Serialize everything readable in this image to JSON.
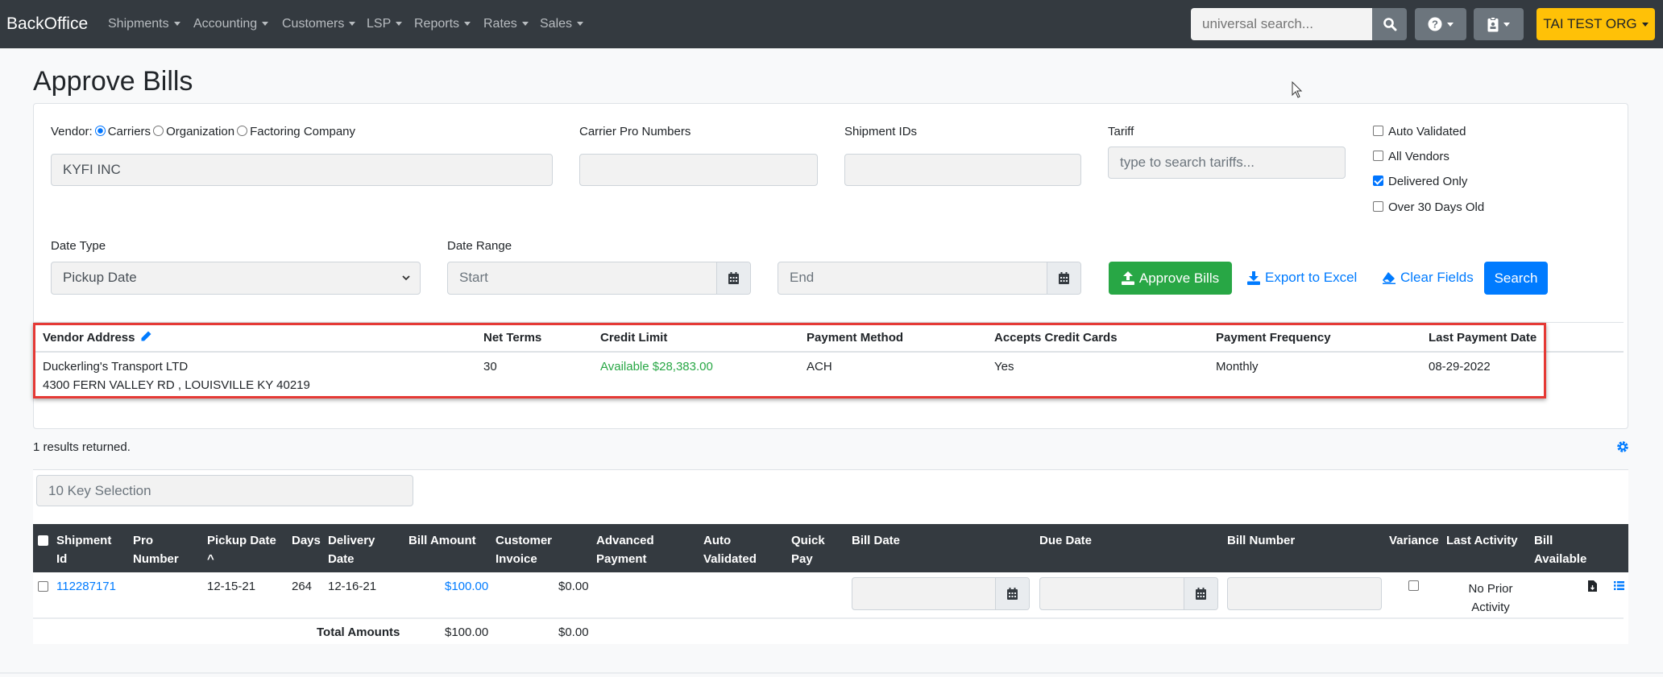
{
  "navbar": {
    "brand": "BackOffice",
    "menus": [
      "Shipments",
      "Accounting",
      "Customers",
      "LSP",
      "Reports",
      "Rates",
      "Sales"
    ],
    "search_placeholder": "universal search...",
    "org_label": "TAI TEST ORG",
    "icons": [
      "search-icon",
      "question-circle-icon",
      "id-badge-icon"
    ]
  },
  "page": {
    "title": "Approve Bills"
  },
  "filters": {
    "vendor_label": "Vendor:",
    "vendor_options": [
      {
        "label": "Carriers",
        "selected": true
      },
      {
        "label": "Organization",
        "selected": false
      },
      {
        "label": "Factoring Company",
        "selected": false
      }
    ],
    "vendor_value": "KYFI INC",
    "carrier_pro_label": "Carrier Pro Numbers",
    "carrier_pro_value": "",
    "shipment_ids_label": "Shipment IDs",
    "shipment_ids_value": "",
    "tariff_label": "Tariff",
    "tariff_placeholder": "type to search tariffs...",
    "checkboxes": [
      {
        "label": "Auto Validated",
        "checked": false
      },
      {
        "label": "All Vendors",
        "checked": false
      },
      {
        "label": "Delivered Only",
        "checked": true
      },
      {
        "label": "Over 30 Days Old",
        "checked": false
      }
    ],
    "date_type_label": "Date Type",
    "date_type_value": "Pickup Date",
    "date_range_label": "Date Range",
    "start_placeholder": "Start",
    "end_placeholder": "End",
    "approve_label": "Approve Bills",
    "export_label": "Export to Excel",
    "clear_label": "Clear Fields",
    "search_label": "Search"
  },
  "vendor_info": {
    "headers": [
      "Vendor Address",
      "Net Terms",
      "Credit Limit",
      "Payment Method",
      "Accepts Credit Cards",
      "Payment Frequency",
      "Last Payment Date"
    ],
    "name": "Duckerling's Transport LTD",
    "address": "4300 FERN VALLEY RD , LOUISVILLE KY 40219",
    "net_terms": "30",
    "credit_limit": "Available $28,383.00",
    "payment_method": "ACH",
    "accepts_credit_cards": "Yes",
    "payment_frequency": "Monthly",
    "last_payment_date": "08-29-2022",
    "colors": {
      "highlight_border": "#e53935",
      "credit_available": "#28a745"
    }
  },
  "results": {
    "count_text": "1 results returned.",
    "ten_key_placeholder": "10 Key Selection"
  },
  "bills_table": {
    "headers": {
      "shipment_id": [
        "Shipment",
        "Id"
      ],
      "pro_number": [
        "Pro",
        "Number"
      ],
      "pickup_date": [
        "Pickup Date",
        "^"
      ],
      "days": [
        "Days"
      ],
      "delivery_date": [
        "Delivery",
        "Date"
      ],
      "bill_amount": [
        "Bill Amount"
      ],
      "customer_invoice": [
        "Customer",
        "Invoice"
      ],
      "advanced_payment": [
        "Advanced",
        "Payment"
      ],
      "auto_validated": [
        "Auto",
        "Validated"
      ],
      "quick_pay": [
        "Quick",
        "Pay"
      ],
      "bill_date": [
        "Bill Date"
      ],
      "due_date": [
        "Due Date"
      ],
      "bill_number": [
        "Bill Number"
      ],
      "variance": [
        "Variance"
      ],
      "last_activity": [
        "Last Activity"
      ],
      "bill_available": [
        "Bill",
        "Available"
      ]
    },
    "rows": [
      {
        "shipment_id": "112287171",
        "pro_number": "",
        "pickup_date": "12-15-21",
        "days": "264",
        "delivery_date": "12-16-21",
        "bill_amount": "$100.00",
        "customer_invoice": "$0.00",
        "advanced_payment": "",
        "auto_validated": "",
        "quick_pay": "",
        "bill_date": "",
        "due_date": "",
        "bill_number": "",
        "variance": false,
        "last_activity": [
          "No Prior",
          "Activity"
        ]
      }
    ],
    "totals": {
      "label": "Total Amounts",
      "bill_amount": "$100.00",
      "customer_invoice": "$0.00"
    }
  }
}
